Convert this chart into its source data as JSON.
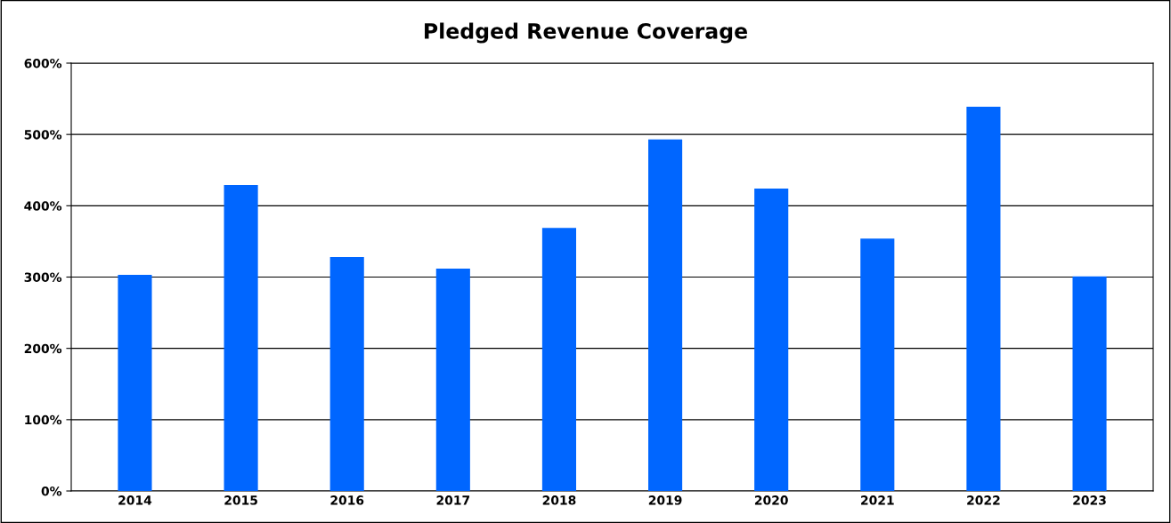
{
  "chart_data": {
    "type": "bar",
    "title": "Pledged Revenue Coverage",
    "categories": [
      "2014",
      "2015",
      "2016",
      "2017",
      "2018",
      "2019",
      "2020",
      "2021",
      "2022",
      "2023"
    ],
    "values": [
      303,
      429,
      328,
      312,
      369,
      493,
      424,
      354,
      539,
      301
    ],
    "color": "#0066ff",
    "ylim": [
      0,
      600
    ],
    "yticks": [
      {
        "value": 0,
        "label": "0%"
      },
      {
        "value": 100,
        "label": "100%"
      },
      {
        "value": 200,
        "label": "200%"
      },
      {
        "value": 300,
        "label": "300%"
      },
      {
        "value": 400,
        "label": "400%"
      },
      {
        "value": 500,
        "label": "500%"
      },
      {
        "value": 600,
        "label": "600%"
      }
    ],
    "grid": "y",
    "legend": false
  }
}
